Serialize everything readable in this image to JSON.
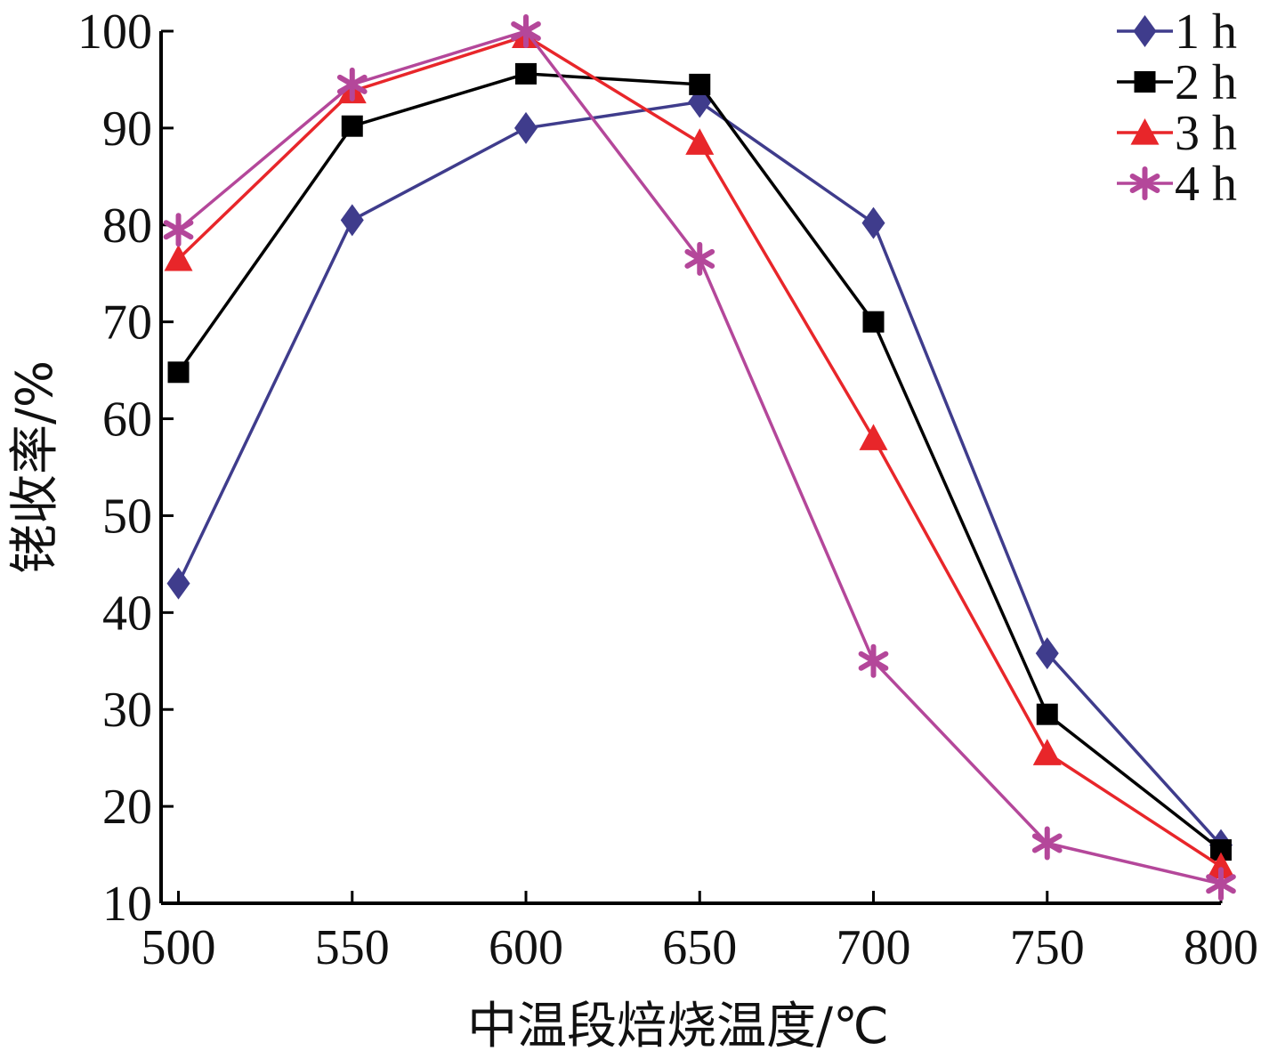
{
  "chart_data": {
    "type": "line",
    "xlabel": "中温段焙烧温度/℃",
    "ylabel": "铑收率/%",
    "xlim": [
      495,
      800
    ],
    "ylim": [
      10,
      100
    ],
    "xticks": [
      500,
      550,
      600,
      650,
      700,
      750,
      800
    ],
    "yticks": [
      10,
      20,
      30,
      40,
      50,
      60,
      70,
      80,
      90,
      100
    ],
    "x": [
      500,
      550,
      600,
      650,
      700,
      750,
      800
    ],
    "grid": false,
    "legend": "top-right",
    "series": [
      {
        "name": "1 h",
        "marker": "diamond",
        "color": "#3f3c8c",
        "values": [
          43,
          80.5,
          90,
          92.7,
          80.2,
          35.8,
          16
        ]
      },
      {
        "name": "2 h",
        "marker": "square",
        "color": "#000000",
        "values": [
          64.8,
          90.2,
          95.6,
          94.5,
          70,
          29.5,
          15.5
        ]
      },
      {
        "name": "3 h",
        "marker": "triangle",
        "color": "#e8262a",
        "values": [
          76.5,
          93.8,
          99.5,
          88.5,
          58,
          25.5,
          13.8
        ]
      },
      {
        "name": "4 h",
        "marker": "asterisk",
        "color": "#b4479a",
        "values": [
          79.5,
          94.5,
          100,
          76.5,
          35,
          16.2,
          12
        ]
      }
    ]
  }
}
